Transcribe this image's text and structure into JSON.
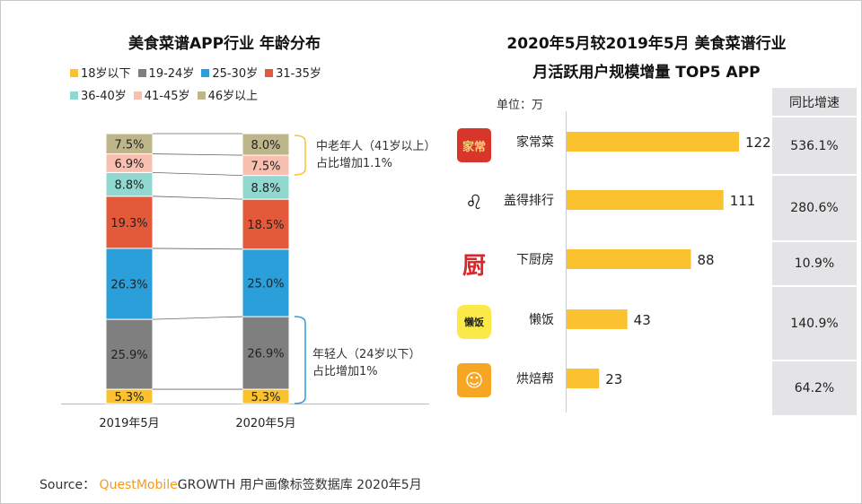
{
  "left_title": "美食菜谱APP行业 年龄分布",
  "right_title_line1": "2020年5月较2019年5月 美食菜谱行业",
  "right_title_line2": "月活跃用户规模增量 TOP5 APP",
  "unit_label": "单位：万",
  "table_header": "同比增速",
  "notes": {
    "older": [
      "中老年人（41岁以上）",
      "占比增加1.1%"
    ],
    "younger": [
      "年轻人（24岁以下）",
      "占比增加1%"
    ]
  },
  "source": {
    "prefix": "Source：",
    "brand": "QuestMobile",
    "text": "GROWTH 用户画像标签数据库 2020年5月"
  },
  "chart_data": [
    {
      "type": "bar",
      "stacked": true,
      "title": "美食菜谱APP行业 年龄分布",
      "categories": [
        "2019年5月",
        "2020年5月"
      ],
      "legend_position": "top",
      "series": [
        {
          "name": "18岁以下",
          "color": "#fcc12e",
          "values": [
            5.3,
            5.3
          ]
        },
        {
          "name": "19-24岁",
          "color": "#7f7f7f",
          "values": [
            25.9,
            26.9
          ]
        },
        {
          "name": "25-30岁",
          "color": "#2b9fd9",
          "values": [
            26.3,
            25.0
          ]
        },
        {
          "name": "31-35岁",
          "color": "#e25a3a",
          "values": [
            19.3,
            18.5
          ]
        },
        {
          "name": "36-40岁",
          "color": "#90d8d0",
          "values": [
            8.8,
            8.8
          ]
        },
        {
          "name": "41-45岁",
          "color": "#f9bfb0",
          "values": [
            6.9,
            7.5
          ]
        },
        {
          "name": "46岁以上",
          "color": "#beb68a",
          "values": [
            7.5,
            8.0
          ]
        }
      ],
      "unit": "%",
      "ylim": [
        0,
        100
      ]
    },
    {
      "type": "bar",
      "orientation": "horizontal",
      "title": "2020年5月较2019年5月 美食菜谱行业 月活跃用户规模增量 TOP5 APP",
      "unit": "万",
      "bar_color": "#fcc12e",
      "categories": [
        "家常菜",
        "盖得排行",
        "下厨房",
        "懒饭",
        "烘焙帮"
      ],
      "values": [
        122,
        111,
        88,
        43,
        23
      ],
      "yoy_growth": [
        "536.1%",
        "280.6%",
        "10.9%",
        "140.9%",
        "64.2%"
      ]
    }
  ]
}
